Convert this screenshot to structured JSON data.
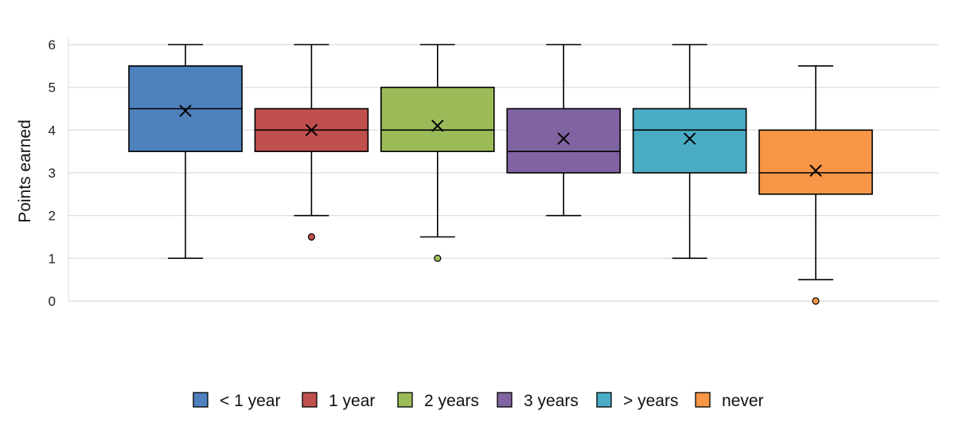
{
  "chart_data": {
    "type": "box",
    "title": "",
    "xlabel": "",
    "ylabel": "Points earned",
    "ylim": [
      0,
      6
    ],
    "yticks": [
      0,
      1,
      2,
      3,
      4,
      5,
      6
    ],
    "grid": true,
    "legend_position": "bottom",
    "series": [
      {
        "name": "< 1 year",
        "color": "#4f81bd",
        "min": 1,
        "q1": 3.5,
        "median": 4.5,
        "q3": 5.5,
        "max": 6,
        "mean": 4.45,
        "outliers": []
      },
      {
        "name": "1 year",
        "color": "#c0504d",
        "min": 2,
        "q1": 3.5,
        "median": 4,
        "q3": 4.5,
        "max": 6,
        "mean": 4.0,
        "outliers": [
          1.5
        ]
      },
      {
        "name": "2 years",
        "color": "#9bbb59",
        "min": 1.5,
        "q1": 3.5,
        "median": 4,
        "q3": 5,
        "max": 6,
        "mean": 4.1,
        "outliers": [
          1
        ]
      },
      {
        "name": "3 years",
        "color": "#8064a2",
        "min": 2,
        "q1": 3,
        "median": 3.5,
        "q3": 4.5,
        "max": 6,
        "mean": 3.8,
        "outliers": []
      },
      {
        "name": "> years",
        "color": "#4bacc6",
        "min": 1,
        "q1": 3,
        "median": 4,
        "q3": 4.5,
        "max": 6,
        "mean": 3.8,
        "outliers": []
      },
      {
        "name": "never",
        "color": "#f79646",
        "min": 0.5,
        "q1": 2.5,
        "median": 3,
        "q3": 4,
        "max": 5.5,
        "mean": 3.05,
        "outliers": [
          0
        ]
      }
    ]
  }
}
